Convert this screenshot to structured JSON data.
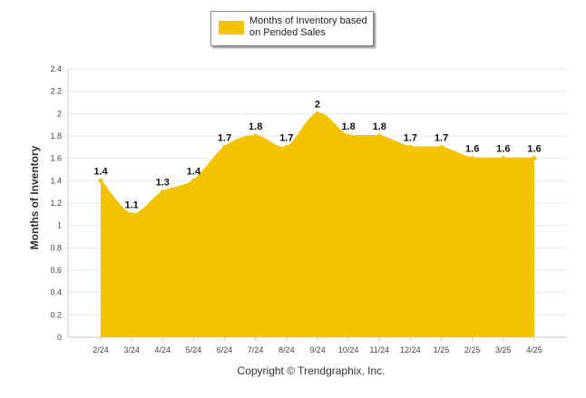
{
  "legend": {
    "label": "Months of Inventory based on Pended Sales"
  },
  "copyright": "Copyright © Trendgraphix, Inc.",
  "colors": {
    "fill": "#f5c200",
    "grid": "#e6e6e6",
    "axis": "#c8c8c8"
  },
  "chart_data": {
    "type": "area",
    "categories": [
      "2/24",
      "3/24",
      "4/24",
      "5/24",
      "6/24",
      "7/24",
      "8/24",
      "9/24",
      "10/24",
      "11/24",
      "12/24",
      "1/25",
      "2/25",
      "3/25",
      "4/25"
    ],
    "series": [
      {
        "name": "Months of Inventory based on Pended Sales",
        "values": [
          1.4,
          1.1,
          1.3,
          1.4,
          1.7,
          1.8,
          1.7,
          2,
          1.8,
          1.8,
          1.7,
          1.7,
          1.6,
          1.6,
          1.6
        ]
      }
    ],
    "data_labels": [
      "1.4",
      "1.1",
      "1.3",
      "1.4",
      "1.7",
      "1.8",
      "1.7",
      "2",
      "1.8",
      "1.8",
      "1.7",
      "1.7",
      "1.6",
      "1.6",
      "1.6"
    ],
    "ylabel": "Months of Inventory",
    "yticks": [
      "0",
      "0.2",
      "0.4",
      "0.6",
      "0.8",
      "1",
      "1.2",
      "1.4",
      "1.6",
      "1.8",
      "2",
      "2.2",
      "2.4"
    ],
    "ylim": [
      0,
      2.4
    ],
    "grid": true,
    "legend_position": "top-center"
  }
}
